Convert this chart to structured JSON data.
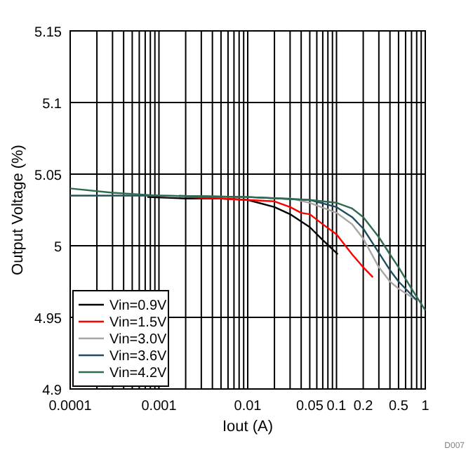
{
  "chart_data": {
    "type": "line",
    "xlabel": "Iout (A)",
    "ylabel": "Output Voltage (%)",
    "log": "x",
    "grid": true,
    "legend": "bottom left",
    "line_style": "solid",
    "xlim": [
      0.0001,
      1
    ],
    "ylim": [
      4.9,
      5.15
    ],
    "yticks": [
      4.9,
      4.95,
      5,
      5.05,
      5.1,
      5.15
    ],
    "xticks": [
      0.0001,
      {
        "value": 0.0002,
        "label": null
      },
      {
        "value": 0.0003,
        "label": null
      },
      {
        "value": 0.0004,
        "label": null
      },
      {
        "value": 0.0005,
        "label": null
      },
      {
        "value": 0.0006,
        "label": null
      },
      {
        "value": 0.0007,
        "label": null
      },
      {
        "value": 0.0008,
        "label": null
      },
      {
        "value": 0.0009,
        "label": null
      },
      0.001,
      {
        "value": 0.002,
        "label": null
      },
      {
        "value": 0.003,
        "label": null
      },
      {
        "value": 0.004,
        "label": null
      },
      {
        "value": 0.005,
        "label": null
      },
      {
        "value": 0.006,
        "label": null
      },
      {
        "value": 0.007,
        "label": null
      },
      {
        "value": 0.008,
        "label": null
      },
      {
        "value": 0.009,
        "label": null
      },
      0.01,
      {
        "value": 0.02,
        "label": null
      },
      {
        "value": 0.03,
        "label": null
      },
      {
        "value": 0.04,
        "label": null
      },
      0.05,
      {
        "value": 0.06,
        "label": null
      },
      {
        "value": 0.07,
        "label": null
      },
      {
        "value": 0.08,
        "label": null
      },
      {
        "value": 0.09,
        "label": null
      },
      0.1,
      0.2,
      {
        "value": 0.3,
        "label": null
      },
      {
        "value": 0.4,
        "label": null
      },
      0.5,
      {
        "value": 0.6,
        "label": null
      },
      {
        "value": 0.7,
        "label": null
      },
      {
        "value": 0.8,
        "label": null
      },
      {
        "value": 0.9,
        "label": null
      },
      1
    ],
    "annotations": [
      "D007"
    ],
    "series": [
      {
        "name": "Vin=0.9V",
        "color": "#000000",
        "x": [
          0.00074,
          0.002,
          0.005,
          0.01,
          0.02,
          0.03,
          0.05,
          0.07,
          0.1035
        ],
        "values": [
          5.034,
          5.033,
          5.033,
          5.032,
          5.027,
          5.022,
          5.013,
          5.004,
          4.994
        ]
      },
      {
        "name": "Vin=1.5V",
        "color": "#ff0000",
        "x": [
          0.002,
          0.005,
          0.01,
          0.02,
          0.03,
          0.04,
          0.05,
          0.07,
          0.1,
          0.15,
          0.2,
          0.257
        ],
        "values": [
          5.034,
          5.033,
          5.032,
          5.031,
          5.027,
          5.023,
          5.022,
          5.015,
          5.008,
          4.994,
          4.985,
          4.978
        ]
      },
      {
        "name": "Vin=3.0V",
        "color": "#a6a6a6",
        "x": [
          0.0001,
          0.001,
          0.01,
          0.03,
          0.05,
          0.1,
          0.15,
          0.2,
          0.3,
          0.4,
          0.5,
          0.8
        ],
        "values": [
          5.035,
          5.035,
          5.034,
          5.033,
          5.03,
          5.023,
          5.015,
          5.005,
          4.985,
          4.975,
          4.97,
          4.962
        ]
      },
      {
        "name": "Vin=3.6V",
        "color": "#1f4e5f",
        "x": [
          0.0001,
          0.001,
          0.01,
          0.05,
          0.1,
          0.15,
          0.2,
          0.3,
          0.4,
          0.5,
          0.8
        ],
        "values": [
          5.035,
          5.035,
          5.034,
          5.032,
          5.027,
          5.02,
          5.012,
          4.995,
          4.983,
          4.975,
          4.962
        ]
      },
      {
        "name": "Vin=4.2V",
        "color": "#2e6b4f",
        "x": [
          0.0001,
          0.0003,
          0.001,
          0.01,
          0.05,
          0.1,
          0.15,
          0.2,
          0.3,
          0.4,
          0.5,
          0.7,
          1
        ],
        "values": [
          5.04,
          5.037,
          5.035,
          5.034,
          5.032,
          5.03,
          5.026,
          5.02,
          5.006,
          4.994,
          4.985,
          4.97,
          4.955
        ]
      }
    ]
  }
}
